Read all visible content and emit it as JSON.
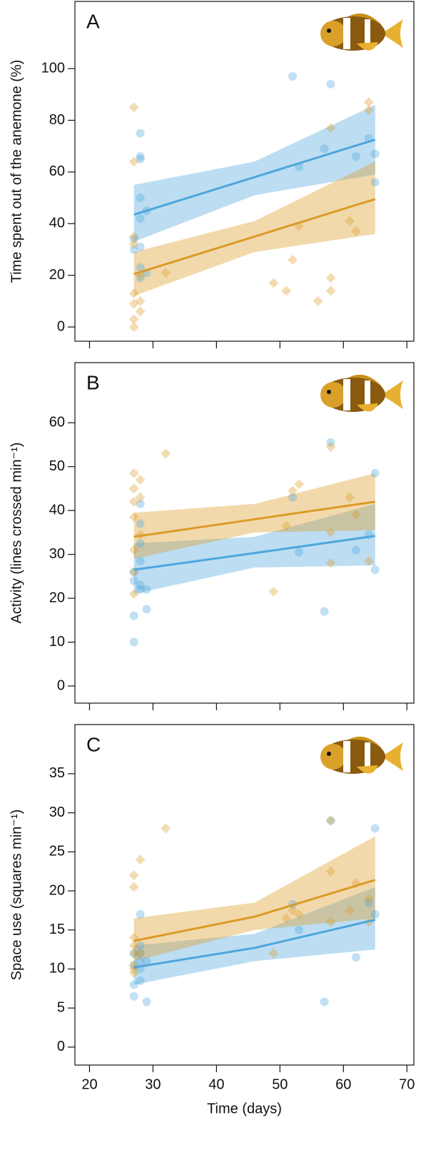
{
  "chart_data": [
    {
      "type": "scatter",
      "panel": "A",
      "ylabel": "Time spent out of the anemone (%)",
      "xlim": [
        17.7,
        71.1
      ],
      "xticks": [
        20,
        30,
        40,
        50,
        60,
        70
      ],
      "xtick_labels": false,
      "ylim": [
        -5.5,
        126
      ],
      "yticks": [
        0,
        20,
        40,
        60,
        80,
        100
      ],
      "series": [
        {
          "color": "#4ea6dd",
          "marker": "circle",
          "x": [
            27,
            27,
            28,
            28,
            28,
            28,
            28,
            28,
            28,
            28,
            29,
            29,
            52,
            53,
            57,
            58,
            62,
            64,
            65,
            65
          ],
          "values": [
            34,
            30,
            75,
            66,
            65,
            50,
            42,
            31,
            23,
            19,
            45,
            21,
            97,
            62,
            69,
            94,
            66,
            73,
            67,
            56
          ],
          "fit": {
            "x": [
              27,
              46,
              65
            ],
            "y": [
              43.5,
              58,
              72.5
            ],
            "lower": [
              33,
              51,
              59
            ],
            "upper": [
              55,
              64,
              86
            ]
          }
        },
        {
          "color": "#dc9a26",
          "marker": "diamond",
          "x": [
            27,
            27,
            27,
            27,
            27,
            27,
            27,
            27,
            28,
            28,
            28,
            32,
            49,
            51,
            52,
            53,
            56,
            58,
            58,
            58,
            61,
            62,
            64,
            64
          ],
          "values": [
            85,
            64,
            35,
            32,
            13,
            9,
            3,
            0,
            20,
            10,
            6,
            21,
            17,
            14,
            26,
            39,
            10,
            77,
            19,
            14,
            41,
            37,
            87,
            84
          ],
          "fit": {
            "x": [
              27,
              46,
              65
            ],
            "y": [
              20.5,
              35,
              49.5
            ],
            "lower": [
              12,
              29,
              36
            ],
            "upper": [
              29,
              41,
              64
            ]
          }
        }
      ]
    },
    {
      "type": "scatter",
      "panel": "B",
      "ylabel": "Activity (lines crossed min⁻¹)",
      "xlim": [
        17.7,
        71.1
      ],
      "xticks": [
        20,
        30,
        40,
        50,
        60,
        70
      ],
      "xtick_labels": false,
      "ylim": [
        -3.9,
        73.7
      ],
      "yticks": [
        0,
        10,
        20,
        30,
        40,
        50,
        60
      ],
      "series": [
        {
          "color": "#4ea6dd",
          "marker": "circle",
          "x": [
            27,
            27,
            27,
            27,
            28,
            28,
            28,
            28,
            28,
            28,
            29,
            29,
            52,
            53,
            57,
            58,
            62,
            64,
            65,
            65
          ],
          "values": [
            26,
            24,
            16,
            10,
            41.5,
            37,
            32.5,
            28.5,
            23,
            22,
            22,
            17.5,
            43,
            30.5,
            17,
            55.5,
            31,
            34.5,
            48.5,
            26.5
          ],
          "fit": {
            "x": [
              27,
              46,
              65
            ],
            "y": [
              26.5,
              30.3,
              34.2
            ],
            "lower": [
              21,
              27,
              27.5
            ],
            "upper": [
              32.5,
              34,
              41.5
            ]
          }
        },
        {
          "color": "#dc9a26",
          "marker": "diamond",
          "x": [
            27,
            27,
            27,
            27,
            27,
            27,
            27,
            28,
            28,
            28,
            32,
            49,
            51,
            52,
            53,
            58,
            58,
            58,
            61,
            62,
            64
          ],
          "values": [
            48.5,
            45,
            42,
            38.5,
            31,
            26,
            21,
            47,
            43,
            34.5,
            53,
            21.5,
            36.5,
            44.5,
            46,
            54.5,
            35,
            28,
            43,
            39,
            28.5
          ],
          "fit": {
            "x": [
              27,
              46,
              65
            ],
            "y": [
              34,
              38,
              42
            ],
            "lower": [
              29,
              35,
              35.5
            ],
            "upper": [
              39.5,
              41.5,
              48.5
            ]
          }
        }
      ]
    },
    {
      "type": "scatter",
      "panel": "C",
      "ylabel": "Space use (squares min⁻¹)",
      "xlabel": "Time (days)",
      "xlim": [
        17.7,
        71.1
      ],
      "xticks": [
        20,
        30,
        40,
        50,
        60,
        70
      ],
      "xtick_labels": true,
      "ylim": [
        -2.3,
        41.3
      ],
      "yticks": [
        0,
        5,
        10,
        15,
        20,
        25,
        30,
        35
      ],
      "series": [
        {
          "color": "#4ea6dd",
          "marker": "circle",
          "x": [
            27,
            27,
            27,
            27,
            28,
            28,
            28,
            28,
            28,
            28,
            29,
            29,
            52,
            53,
            57,
            58,
            62,
            64,
            65,
            65
          ],
          "values": [
            12,
            10.5,
            8,
            6.5,
            17,
            13,
            12,
            11,
            10,
            8.5,
            11,
            5.8,
            18.3,
            15,
            5.8,
            29,
            11.5,
            18.5,
            28,
            17
          ],
          "fit": {
            "x": [
              27,
              46,
              65
            ],
            "y": [
              10.2,
              12.7,
              16.3
            ],
            "lower": [
              8,
              11,
              12.5
            ],
            "upper": [
              13,
              14.5,
              20.5
            ]
          }
        },
        {
          "color": "#dc9a26",
          "marker": "diamond",
          "x": [
            27,
            27,
            27,
            27,
            27,
            27,
            27,
            27,
            28,
            28,
            32,
            49,
            51,
            52,
            53,
            58,
            58,
            58,
            61,
            62,
            64,
            64
          ],
          "values": [
            22,
            20.5,
            14,
            13,
            12,
            10.5,
            10,
            9.5,
            24,
            12,
            28,
            12,
            16.5,
            17.5,
            17,
            29,
            22.5,
            16,
            17.5,
            21,
            19,
            16
          ],
          "fit": {
            "x": [
              27,
              46,
              65
            ],
            "y": [
              13.6,
              16.7,
              21.4
            ],
            "lower": [
              11,
              15,
              16.5
            ],
            "upper": [
              16.5,
              18.5,
              27
            ]
          }
        }
      ]
    }
  ]
}
